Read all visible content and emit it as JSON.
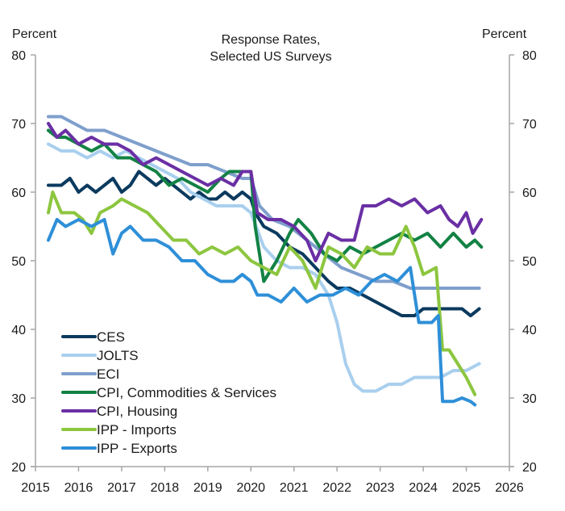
{
  "chart_data": {
    "type": "line",
    "title": [
      "Response Rates,",
      "Selected US Surveys"
    ],
    "ylabel_left": "Percent",
    "ylabel_right": "Percent",
    "xlabel": "",
    "xlim": [
      2015,
      2026
    ],
    "ylim": [
      20,
      80
    ],
    "x_ticks": [
      2015,
      2016,
      2017,
      2018,
      2019,
      2020,
      2021,
      2022,
      2023,
      2024,
      2025,
      2026
    ],
    "y_ticks": [
      20,
      30,
      40,
      50,
      60,
      70,
      80
    ],
    "grid": false,
    "legend_position": "bottom-left",
    "series": [
      {
        "name": "CES",
        "color": "#0b3a5e",
        "points": [
          [
            2015.3,
            61
          ],
          [
            2015.6,
            61
          ],
          [
            2015.8,
            62
          ],
          [
            2016.0,
            60
          ],
          [
            2016.2,
            61
          ],
          [
            2016.4,
            60
          ],
          [
            2016.6,
            61
          ],
          [
            2016.8,
            62
          ],
          [
            2017.0,
            60
          ],
          [
            2017.2,
            61
          ],
          [
            2017.4,
            63
          ],
          [
            2017.6,
            62
          ],
          [
            2017.8,
            61
          ],
          [
            2018.0,
            62
          ],
          [
            2018.2,
            61
          ],
          [
            2018.4,
            60
          ],
          [
            2018.6,
            59
          ],
          [
            2018.8,
            60
          ],
          [
            2019.0,
            59
          ],
          [
            2019.2,
            59
          ],
          [
            2019.4,
            60
          ],
          [
            2019.6,
            59
          ],
          [
            2019.8,
            60
          ],
          [
            2020.0,
            59
          ],
          [
            2020.1,
            57
          ],
          [
            2020.3,
            55
          ],
          [
            2020.6,
            54
          ],
          [
            2020.9,
            52
          ],
          [
            2021.2,
            51
          ],
          [
            2021.5,
            49
          ],
          [
            2021.8,
            47
          ],
          [
            2022.0,
            46
          ],
          [
            2022.3,
            46
          ],
          [
            2022.6,
            45
          ],
          [
            2022.9,
            44
          ],
          [
            2023.2,
            43
          ],
          [
            2023.5,
            42
          ],
          [
            2023.8,
            42
          ],
          [
            2024.0,
            43
          ],
          [
            2024.3,
            43
          ],
          [
            2024.6,
            43
          ],
          [
            2024.9,
            43
          ],
          [
            2025.1,
            42
          ],
          [
            2025.3,
            43
          ]
        ]
      },
      {
        "name": "JOLTS",
        "color": "#a9cfee",
        "points": [
          [
            2015.3,
            67
          ],
          [
            2015.6,
            66
          ],
          [
            2015.9,
            66
          ],
          [
            2016.2,
            65
          ],
          [
            2016.5,
            66
          ],
          [
            2016.8,
            65
          ],
          [
            2017.1,
            66
          ],
          [
            2017.4,
            65
          ],
          [
            2017.7,
            64
          ],
          [
            2018.0,
            63
          ],
          [
            2018.3,
            62
          ],
          [
            2018.6,
            60
          ],
          [
            2018.9,
            59
          ],
          [
            2019.2,
            58
          ],
          [
            2019.5,
            58
          ],
          [
            2019.8,
            58
          ],
          [
            2020.0,
            57
          ],
          [
            2020.3,
            52
          ],
          [
            2020.6,
            50
          ],
          [
            2020.9,
            49
          ],
          [
            2021.2,
            49
          ],
          [
            2021.5,
            48
          ],
          [
            2021.8,
            45
          ],
          [
            2022.0,
            41
          ],
          [
            2022.2,
            35
          ],
          [
            2022.4,
            32
          ],
          [
            2022.6,
            31
          ],
          [
            2022.9,
            31
          ],
          [
            2023.2,
            32
          ],
          [
            2023.5,
            32
          ],
          [
            2023.8,
            33
          ],
          [
            2024.1,
            33
          ],
          [
            2024.4,
            33
          ],
          [
            2024.7,
            34
          ],
          [
            2025.0,
            34
          ],
          [
            2025.3,
            35
          ]
        ]
      },
      {
        "name": "ECI",
        "color": "#7f9fcc",
        "points": [
          [
            2015.3,
            71
          ],
          [
            2015.6,
            71
          ],
          [
            2015.9,
            70
          ],
          [
            2016.2,
            69
          ],
          [
            2016.6,
            69
          ],
          [
            2017.0,
            68
          ],
          [
            2017.4,
            67
          ],
          [
            2017.8,
            66
          ],
          [
            2018.2,
            65
          ],
          [
            2018.6,
            64
          ],
          [
            2019.0,
            64
          ],
          [
            2019.4,
            63
          ],
          [
            2019.8,
            62
          ],
          [
            2020.0,
            62
          ],
          [
            2020.2,
            58
          ],
          [
            2020.5,
            56
          ],
          [
            2020.9,
            55
          ],
          [
            2021.3,
            53
          ],
          [
            2021.7,
            51
          ],
          [
            2022.1,
            49
          ],
          [
            2022.5,
            48
          ],
          [
            2022.9,
            47
          ],
          [
            2023.3,
            47
          ],
          [
            2023.7,
            46
          ],
          [
            2024.1,
            46
          ],
          [
            2024.5,
            46
          ],
          [
            2024.9,
            46
          ],
          [
            2025.3,
            46
          ]
        ]
      },
      {
        "name": "CPI, Commodities & Services",
        "color": "#128244",
        "points": [
          [
            2015.3,
            69
          ],
          [
            2015.5,
            68
          ],
          [
            2015.7,
            68
          ],
          [
            2016.0,
            67
          ],
          [
            2016.3,
            66
          ],
          [
            2016.6,
            67
          ],
          [
            2016.9,
            65
          ],
          [
            2017.2,
            65
          ],
          [
            2017.5,
            64
          ],
          [
            2017.8,
            63
          ],
          [
            2018.1,
            61
          ],
          [
            2018.4,
            62
          ],
          [
            2018.7,
            61
          ],
          [
            2019.0,
            60
          ],
          [
            2019.3,
            62
          ],
          [
            2019.5,
            63
          ],
          [
            2019.8,
            63
          ],
          [
            2020.0,
            63
          ],
          [
            2020.1,
            55
          ],
          [
            2020.3,
            47
          ],
          [
            2020.6,
            50
          ],
          [
            2020.9,
            54
          ],
          [
            2021.1,
            56
          ],
          [
            2021.4,
            54
          ],
          [
            2021.7,
            51
          ],
          [
            2022.0,
            50
          ],
          [
            2022.3,
            52
          ],
          [
            2022.6,
            51
          ],
          [
            2022.9,
            52
          ],
          [
            2023.2,
            53
          ],
          [
            2023.5,
            54
          ],
          [
            2023.8,
            53
          ],
          [
            2024.1,
            54
          ],
          [
            2024.4,
            52
          ],
          [
            2024.7,
            54
          ],
          [
            2025.0,
            52
          ],
          [
            2025.2,
            53
          ],
          [
            2025.35,
            52
          ]
        ]
      },
      {
        "name": "CPI, Housing",
        "color": "#6a2fa4",
        "points": [
          [
            2015.3,
            70
          ],
          [
            2015.5,
            68
          ],
          [
            2015.7,
            69
          ],
          [
            2016.0,
            67
          ],
          [
            2016.3,
            68
          ],
          [
            2016.6,
            67
          ],
          [
            2016.9,
            67
          ],
          [
            2017.2,
            66
          ],
          [
            2017.5,
            64
          ],
          [
            2017.8,
            65
          ],
          [
            2018.1,
            64
          ],
          [
            2018.4,
            63
          ],
          [
            2018.7,
            62
          ],
          [
            2019.0,
            61
          ],
          [
            2019.3,
            62
          ],
          [
            2019.6,
            61
          ],
          [
            2019.8,
            63
          ],
          [
            2020.0,
            63
          ],
          [
            2020.15,
            57
          ],
          [
            2020.4,
            56
          ],
          [
            2020.7,
            56
          ],
          [
            2021.0,
            55
          ],
          [
            2021.3,
            53
          ],
          [
            2021.5,
            50
          ],
          [
            2021.8,
            54
          ],
          [
            2022.1,
            53
          ],
          [
            2022.4,
            53
          ],
          [
            2022.6,
            58
          ],
          [
            2022.9,
            58
          ],
          [
            2023.2,
            59
          ],
          [
            2023.5,
            58
          ],
          [
            2023.8,
            59
          ],
          [
            2024.1,
            57
          ],
          [
            2024.4,
            58
          ],
          [
            2024.6,
            56
          ],
          [
            2024.8,
            55
          ],
          [
            2025.0,
            57
          ],
          [
            2025.15,
            54
          ],
          [
            2025.35,
            56
          ]
        ]
      },
      {
        "name": "IPP - Imports",
        "color": "#8cc63f",
        "points": [
          [
            2015.3,
            57
          ],
          [
            2015.4,
            60
          ],
          [
            2015.6,
            57
          ],
          [
            2015.9,
            57
          ],
          [
            2016.1,
            56
          ],
          [
            2016.3,
            54
          ],
          [
            2016.5,
            57
          ],
          [
            2016.8,
            58
          ],
          [
            2017.0,
            59
          ],
          [
            2017.3,
            58
          ],
          [
            2017.6,
            57
          ],
          [
            2017.9,
            55
          ],
          [
            2018.2,
            53
          ],
          [
            2018.5,
            53
          ],
          [
            2018.8,
            51
          ],
          [
            2019.1,
            52
          ],
          [
            2019.4,
            51
          ],
          [
            2019.7,
            52
          ],
          [
            2020.0,
            50
          ],
          [
            2020.3,
            49
          ],
          [
            2020.6,
            48
          ],
          [
            2020.9,
            52
          ],
          [
            2021.2,
            50
          ],
          [
            2021.5,
            46
          ],
          [
            2021.8,
            52
          ],
          [
            2022.1,
            51
          ],
          [
            2022.4,
            49
          ],
          [
            2022.7,
            52
          ],
          [
            2023.0,
            51
          ],
          [
            2023.3,
            51
          ],
          [
            2023.6,
            55
          ],
          [
            2023.8,
            52
          ],
          [
            2024.0,
            48
          ],
          [
            2024.3,
            49
          ],
          [
            2024.45,
            37
          ],
          [
            2024.6,
            37
          ],
          [
            2024.8,
            35
          ],
          [
            2025.0,
            33
          ],
          [
            2025.2,
            30.5
          ]
        ]
      },
      {
        "name": "IPP - Exports",
        "color": "#2e8fd8",
        "points": [
          [
            2015.3,
            53
          ],
          [
            2015.5,
            56
          ],
          [
            2015.7,
            55
          ],
          [
            2016.0,
            56
          ],
          [
            2016.3,
            55
          ],
          [
            2016.6,
            56
          ],
          [
            2016.8,
            51
          ],
          [
            2017.0,
            54
          ],
          [
            2017.2,
            55
          ],
          [
            2017.5,
            53
          ],
          [
            2017.8,
            53
          ],
          [
            2018.1,
            52
          ],
          [
            2018.4,
            50
          ],
          [
            2018.7,
            50
          ],
          [
            2019.0,
            48
          ],
          [
            2019.3,
            47
          ],
          [
            2019.6,
            47
          ],
          [
            2019.8,
            48
          ],
          [
            2020.0,
            47
          ],
          [
            2020.15,
            45
          ],
          [
            2020.4,
            45
          ],
          [
            2020.7,
            44
          ],
          [
            2021.0,
            46
          ],
          [
            2021.3,
            44
          ],
          [
            2021.6,
            45
          ],
          [
            2021.9,
            45
          ],
          [
            2022.2,
            46
          ],
          [
            2022.5,
            45
          ],
          [
            2022.8,
            47
          ],
          [
            2023.1,
            48
          ],
          [
            2023.4,
            47
          ],
          [
            2023.7,
            49
          ],
          [
            2023.9,
            41
          ],
          [
            2024.2,
            41
          ],
          [
            2024.35,
            42
          ],
          [
            2024.45,
            29.5
          ],
          [
            2024.7,
            29.5
          ],
          [
            2024.9,
            30
          ],
          [
            2025.1,
            29.5
          ],
          [
            2025.2,
            29
          ]
        ]
      }
    ]
  }
}
